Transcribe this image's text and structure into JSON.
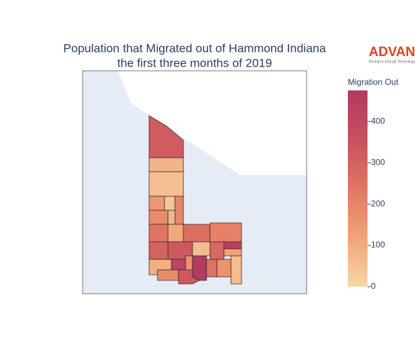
{
  "chart_data": {
    "type": "choropleth",
    "title": [
      "Population that Migrated out of Hammond Indiana",
      "the first three months of 2019"
    ],
    "logo": {
      "name": "ADVAN",
      "tagline": "Research through Technology"
    },
    "colorbar_title": "Migration Out",
    "zlim": [
      0,
      475
    ],
    "ticks": [
      0,
      100,
      200,
      300,
      400
    ],
    "colorscale": [
      "#f8d6a6",
      "#f0a478",
      "#e07662",
      "#c9505f",
      "#b13a5f"
    ],
    "values": [
      320,
      80,
      50,
      150,
      40,
      190,
      180,
      70,
      240,
      110,
      260,
      210,
      300,
      330,
      60,
      280,
      440,
      120,
      90,
      420,
      170,
      470,
      250,
      160,
      60,
      180,
      330
    ]
  }
}
